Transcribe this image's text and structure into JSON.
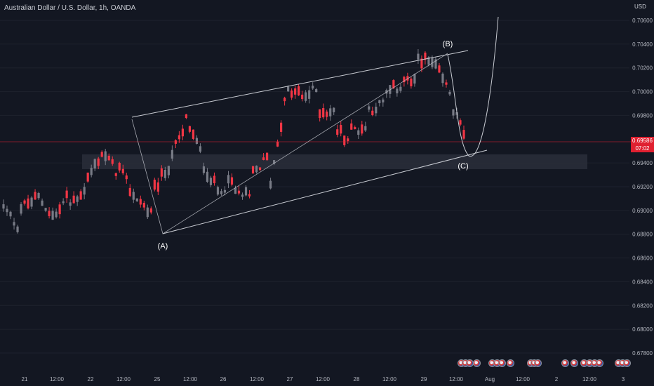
{
  "header": {
    "title": "Australian Dollar / U.S. Dollar, 1h, OANDA",
    "currency": "USD"
  },
  "price_tag": {
    "price": "0.69586",
    "countdown": "07:02"
  },
  "annotations": {
    "a": "(A)",
    "b": "(B)",
    "c": "(C)"
  },
  "colors": {
    "background": "#131722",
    "up_candle": "#787b86",
    "down_candle": "#f23645",
    "price_line": "#e02030",
    "zone": "#2a2e39",
    "drawing": "#c9ccd3"
  },
  "chart_data": {
    "type": "candlestick",
    "instrument": "Australian Dollar / U.S. Dollar",
    "interval": "1h",
    "source": "OANDA",
    "y_axis": {
      "ticks": [
        "0.70600",
        "0.70400",
        "0.70200",
        "0.70000",
        "0.69800",
        "0.69400",
        "0.69200",
        "0.69000",
        "0.68800",
        "0.68600",
        "0.68400",
        "0.68200",
        "0.68000",
        "0.67800"
      ],
      "ylim": [
        0.6775,
        0.7075
      ]
    },
    "x_axis": {
      "ticks": [
        "21",
        "12:00",
        "22",
        "12:00",
        "25",
        "12:00",
        "26",
        "12:00",
        "27",
        "12:00",
        "28",
        "12:00",
        "29",
        "12:00",
        "Aug",
        "12:00",
        "2",
        "12:00",
        "3"
      ]
    },
    "last_price": 0.69586,
    "support_resistance_zone": [
      0.6935,
      0.6947
    ],
    "wave_points": [
      {
        "label": "(A)",
        "time": "25 (early)",
        "price": 0.688
      },
      {
        "label": "(B)",
        "time": "29 (~12:00)",
        "price": 0.7033
      },
      {
        "label": "(C)",
        "time": "29 (late)",
        "price": 0.6945
      }
    ],
    "anchors": [
      [
        0.6902,
        0.6885
      ],
      [
        0.6902,
        0.691
      ],
      [
        0.6913,
        0.6895
      ],
      [
        0.6892,
        0.6915
      ],
      [
        0.6905,
        0.692
      ],
      [
        0.6925,
        0.695
      ],
      [
        0.6948,
        0.693
      ],
      [
        0.6935,
        0.6908
      ],
      [
        0.6912,
        0.6895
      ],
      [
        0.6915,
        0.6938
      ],
      [
        0.6945,
        0.6968
      ],
      [
        0.6978,
        0.6945
      ],
      [
        0.694,
        0.6915
      ],
      [
        0.6918,
        0.6925
      ],
      [
        0.6915,
        0.691
      ],
      [
        0.693,
        0.6945
      ],
      [
        0.6915,
        0.6993
      ],
      [
        0.7,
        0.6998
      ],
      [
        0.6995,
        0.7002
      ],
      [
        0.6985,
        0.6982
      ],
      [
        0.697,
        0.6958
      ],
      [
        0.6968,
        0.697
      ],
      [
        0.6985,
        0.699
      ],
      [
        0.6998,
        0.7005
      ],
      [
        0.7012,
        0.7005
      ],
      [
        0.703,
        0.7022
      ],
      [
        0.7022,
        0.6998
      ],
      [
        0.699,
        0.6958
      ]
    ]
  }
}
